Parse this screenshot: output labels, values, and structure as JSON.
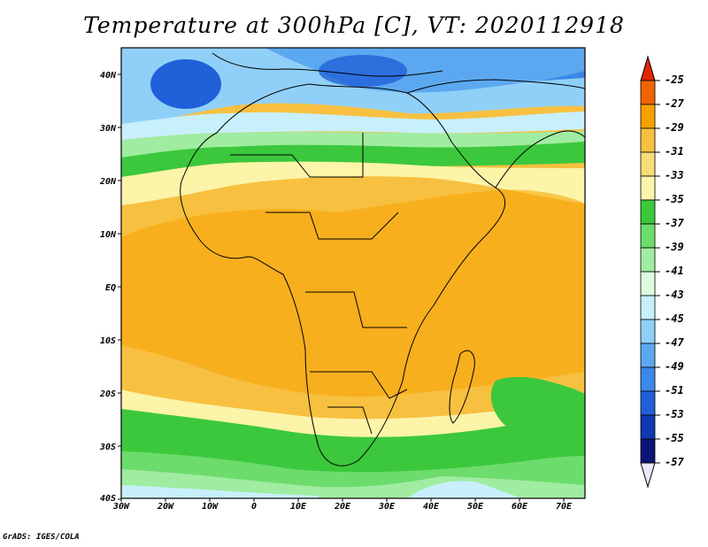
{
  "title": "Temperature at 300hPa [C], VT: 2020112918",
  "credit": "GrADS: IGES/COLA",
  "map": {
    "lon_ticks": [
      "30W",
      "20W",
      "10W",
      "0",
      "10E",
      "20E",
      "30E",
      "40E",
      "50E",
      "60E",
      "70E"
    ],
    "lat_ticks": [
      "40N",
      "30N",
      "20N",
      "10N",
      "EQ",
      "10S",
      "20S",
      "30S",
      "40S"
    ]
  },
  "colorbar": {
    "labels": [
      "-25",
      "-27",
      "-29",
      "-31",
      "-33",
      "-35",
      "-37",
      "-39",
      "-41",
      "-43",
      "-45",
      "-47",
      "-49",
      "-51",
      "-53",
      "-55",
      "-57"
    ],
    "colors": [
      "#e02800",
      "#f06400",
      "#f8a000",
      "#f8c040",
      "#f8dc78",
      "#fcf4a8",
      "#3cc83c",
      "#6cdc6c",
      "#a0eca0",
      "#e0fce0",
      "#c8f0fc",
      "#90d0f8",
      "#5ca8f0",
      "#3c88e8",
      "#2060d8",
      "#1038b0",
      "#0c1478",
      "#e8e8ff"
    ]
  }
}
